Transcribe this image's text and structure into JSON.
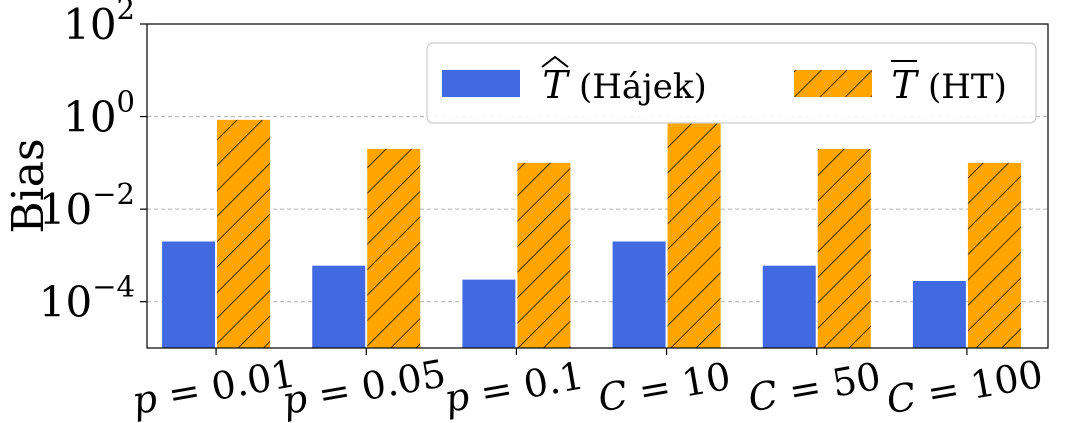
{
  "chart_data": {
    "type": "bar",
    "categories": [
      "p = 0.01",
      "p = 0.05",
      "p = 0.1",
      "C = 10",
      "C = 50",
      "C = 100"
    ],
    "category_labels": [
      {
        "var": "p",
        "rhs": "0.01"
      },
      {
        "var": "p",
        "rhs": "0.05"
      },
      {
        "var": "p",
        "rhs": "0.1"
      },
      {
        "var": "C",
        "rhs": "10"
      },
      {
        "var": "C",
        "rhs": "50"
      },
      {
        "var": "C",
        "rhs": "100"
      }
    ],
    "series": [
      {
        "symbol": "T",
        "accent": "hat",
        "text": "(Hájek)",
        "color": "#4169e1",
        "hatch": false,
        "values": [
          0.002,
          0.0006,
          0.0003,
          0.002,
          0.0006,
          0.00028
        ]
      },
      {
        "symbol": "T",
        "accent": "bar",
        "text": "(HT)",
        "color": "#ffa500",
        "hatch": true,
        "values": [
          0.85,
          0.2,
          0.1,
          0.75,
          0.2,
          0.1
        ]
      }
    ],
    "ylabel": "Bias",
    "yscale": "log",
    "ylim": [
      1e-05,
      100
    ],
    "yticks": [
      {
        "value": 0.0001,
        "base": "10",
        "exp": "−4"
      },
      {
        "value": 0.01,
        "base": "10",
        "exp": "−2"
      },
      {
        "value": 1,
        "base": "10",
        "exp": "0"
      },
      {
        "value": 100,
        "base": "10",
        "exp": "2"
      }
    ],
    "grid": "y-dashed",
    "legend_position": "top-right"
  }
}
